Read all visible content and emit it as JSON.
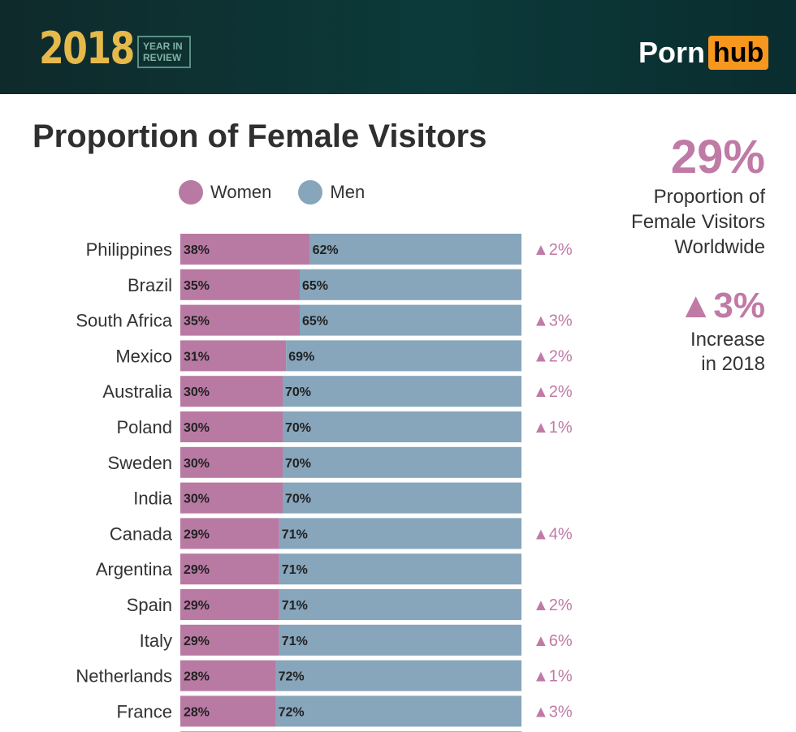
{
  "header": {
    "year": "2018",
    "year_in_review": "YEAR IN REVIEW",
    "logo_porn": "Porn",
    "logo_hub": "hub"
  },
  "side_stats": {
    "worldwide_value": "29%",
    "worldwide_label_1": "Proportion of",
    "worldwide_label_2": "Female Visitors",
    "worldwide_label_3": "Worldwide",
    "increase_value": "▲3%",
    "increase_label_1": "Increase",
    "increase_label_2": "in 2018"
  },
  "colors": {
    "women": "#b87aa3",
    "men": "#87a5bb",
    "accent": "#c07aa6"
  },
  "chart_data": {
    "type": "bar",
    "orientation": "horizontal-stacked-100",
    "title": "Proportion of Female Visitors",
    "legend": [
      "Women",
      "Men"
    ],
    "categories": [
      "Philippines",
      "Brazil",
      "South Africa",
      "Mexico",
      "Australia",
      "Poland",
      "Sweden",
      "India",
      "Canada",
      "Argentina",
      "Spain",
      "Italy",
      "Netherlands",
      "France"
    ],
    "series": [
      {
        "name": "Women",
        "values": [
          38,
          35,
          35,
          31,
          30,
          30,
          30,
          30,
          29,
          29,
          29,
          29,
          28,
          28
        ]
      },
      {
        "name": "Men",
        "values": [
          62,
          65,
          65,
          69,
          70,
          70,
          70,
          70,
          71,
          71,
          71,
          71,
          72,
          72
        ]
      }
    ],
    "change": [
      "▲2%",
      "",
      "▲3%",
      "▲2%",
      "▲2%",
      "▲1%",
      "",
      "",
      "▲4%",
      "",
      "▲2%",
      "▲6%",
      "▲1%",
      "▲3%"
    ],
    "xlim": [
      0,
      100
    ]
  }
}
